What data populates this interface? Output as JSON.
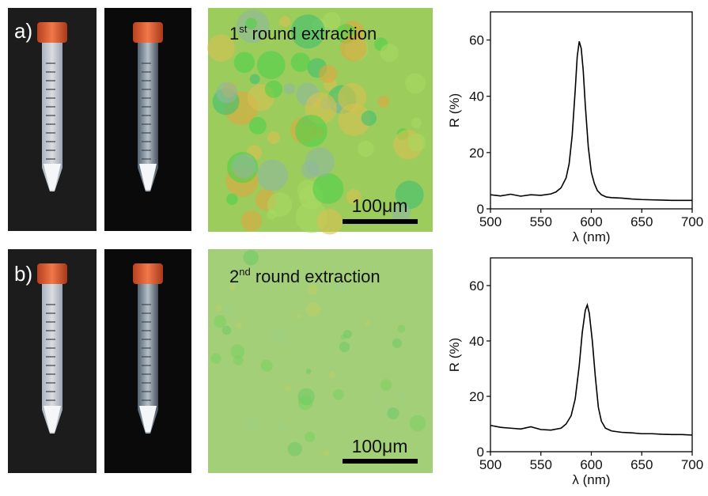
{
  "panels": [
    {
      "label": "a)",
      "caption": {
        "number": "1",
        "sup": "st",
        "text": " round extraction"
      },
      "scale_bar": "100μm"
    },
    {
      "label": "b)",
      "caption": {
        "number": "2",
        "sup": "nd",
        "text": " round extraction"
      },
      "scale_bar": "100μm"
    }
  ],
  "chart_data": [
    {
      "type": "line",
      "x_label": "λ (nm)",
      "y_label": "R (%)",
      "xlim": [
        500,
        700
      ],
      "xticks": [
        500,
        550,
        600,
        650,
        700
      ],
      "ylim": [
        0,
        70
      ],
      "yticks": [
        0,
        20,
        40,
        60
      ],
      "x": [
        500,
        510,
        520,
        530,
        540,
        550,
        560,
        565,
        570,
        575,
        578,
        581,
        584,
        586,
        588,
        590,
        592,
        594,
        597,
        600,
        603,
        606,
        610,
        615,
        620,
        630,
        640,
        650,
        660,
        670,
        680,
        690,
        700
      ],
      "values": [
        5,
        4.6,
        5.2,
        4.5,
        5,
        4.8,
        5.3,
        6,
        7.5,
        11,
        16,
        26,
        42,
        54,
        59.5,
        57,
        49,
        37,
        22,
        13,
        9,
        6.5,
        5,
        4.2,
        4,
        3.8,
        3.5,
        3.3,
        3.2,
        3.1,
        3,
        3,
        3
      ],
      "color": "#000000"
    },
    {
      "type": "line",
      "x_label": "λ (nm)",
      "y_label": "R (%)",
      "xlim": [
        500,
        700
      ],
      "xticks": [
        500,
        550,
        600,
        650,
        700
      ],
      "ylim": [
        0,
        70
      ],
      "yticks": [
        0,
        20,
        40,
        60
      ],
      "x": [
        500,
        510,
        520,
        530,
        540,
        550,
        560,
        570,
        575,
        580,
        584,
        588,
        591,
        594,
        596,
        598,
        601,
        604,
        607,
        610,
        614,
        620,
        630,
        640,
        650,
        660,
        670,
        680,
        690,
        700
      ],
      "values": [
        9.5,
        8.8,
        8.5,
        8.2,
        9,
        8,
        7.8,
        8.5,
        10,
        13,
        19,
        31,
        43,
        51,
        53,
        50,
        40,
        27,
        16,
        11,
        8.5,
        7.5,
        7,
        6.8,
        6.5,
        6.5,
        6.3,
        6.2,
        6.2,
        6
      ],
      "color": "#000000"
    }
  ]
}
